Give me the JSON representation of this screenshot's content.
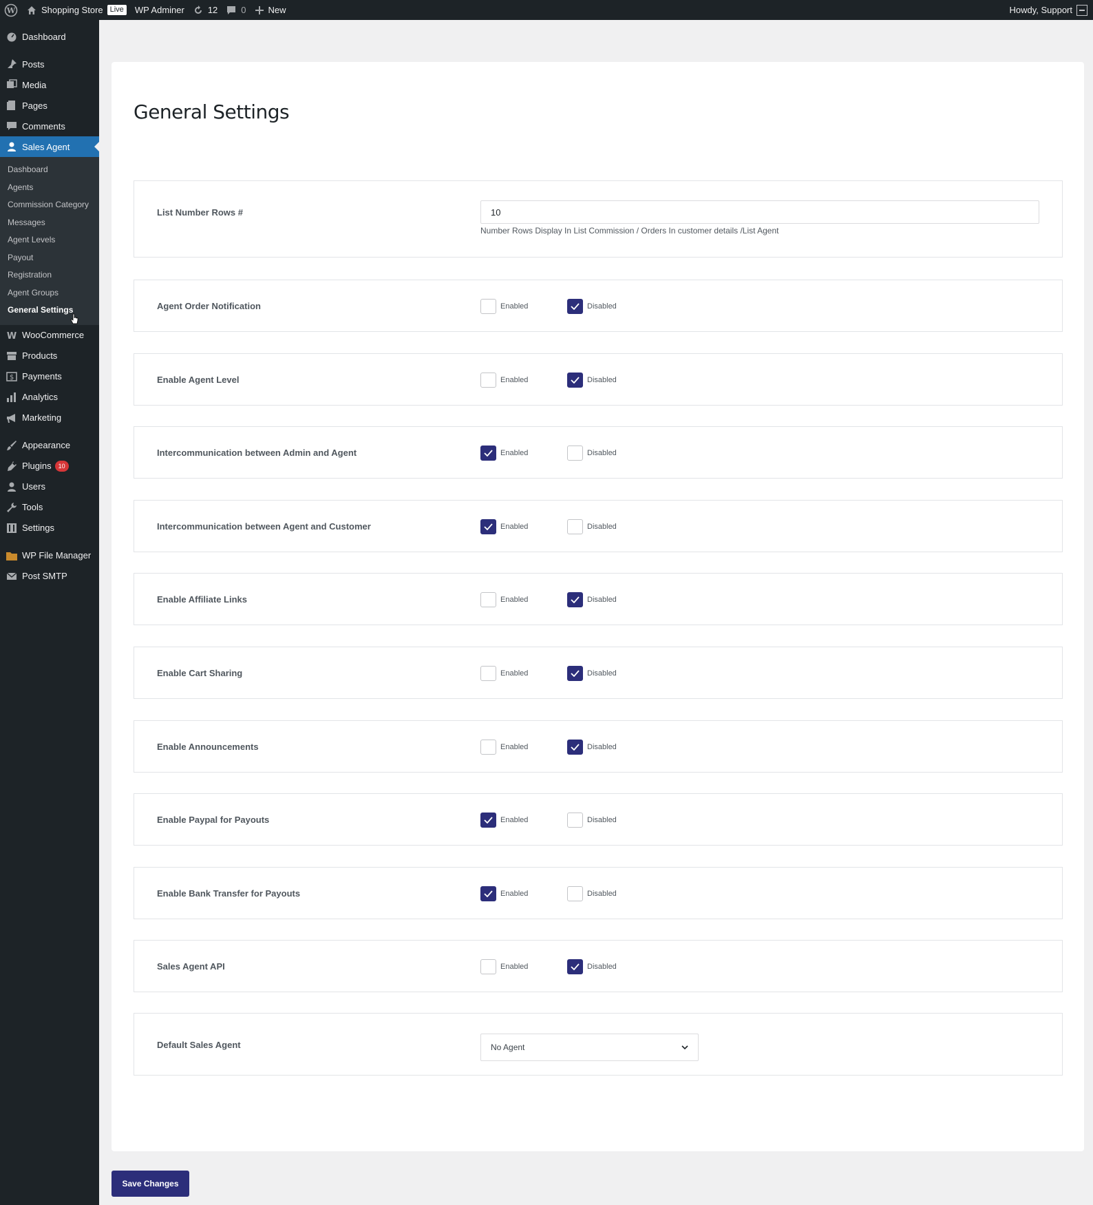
{
  "adminbar": {
    "site_name": "Shopping Store",
    "live_badge": "Live",
    "wp_adminer": "WP Adminer",
    "updates_count": "12",
    "comments_count": "0",
    "new_label": "New",
    "howdy": "Howdy, Support"
  },
  "sidebar": {
    "dashboard": "Dashboard",
    "posts": "Posts",
    "media": "Media",
    "pages": "Pages",
    "comments": "Comments",
    "sales_agent": "Sales Agent",
    "submenu": [
      "Dashboard",
      "Agents",
      "Commission Category",
      "Messages",
      "Agent Levels",
      "Payout",
      "Registration",
      "Agent Groups",
      "General Settings"
    ],
    "woocommerce": "WooCommerce",
    "products": "Products",
    "payments": "Payments",
    "analytics": "Analytics",
    "marketing": "Marketing",
    "appearance": "Appearance",
    "plugins": "Plugins",
    "plugins_badge": "10",
    "users": "Users",
    "tools": "Tools",
    "settings": "Settings",
    "wp_file_manager": "WP File Manager",
    "post_smtp": "Post SMTP"
  },
  "main": {
    "title": "General Settings",
    "list_rows": {
      "label": "List Number Rows #",
      "value": "10",
      "hint": "Number Rows Display In List Commission / Orders In customer details /List Agent"
    },
    "option_enabled": "Enabled",
    "option_disabled": "Disabled",
    "settings": [
      {
        "label": "Agent Order Notification",
        "value": "Disabled"
      },
      {
        "label": "Enable Agent Level",
        "value": "Disabled"
      },
      {
        "label": "Intercommunication between Admin and Agent",
        "value": "Enabled"
      },
      {
        "label": "Intercommunication between Agent and Customer",
        "value": "Enabled"
      },
      {
        "label": "Enable Affiliate Links",
        "value": "Disabled"
      },
      {
        "label": "Enable Cart Sharing",
        "value": "Disabled"
      },
      {
        "label": "Enable Announcements",
        "value": "Disabled"
      },
      {
        "label": "Enable Paypal for Payouts",
        "value": "Enabled"
      },
      {
        "label": "Enable Bank Transfer for Payouts",
        "value": "Enabled"
      },
      {
        "label": "Sales Agent API",
        "value": "Disabled"
      }
    ],
    "default_agent": {
      "label": "Default Sales Agent",
      "selected": "No Agent"
    },
    "save_label": "Save Changes"
  },
  "colors": {
    "accent": "#2c2e7a",
    "admin_bar": "#1d2327",
    "menu_current": "#2271b1"
  }
}
